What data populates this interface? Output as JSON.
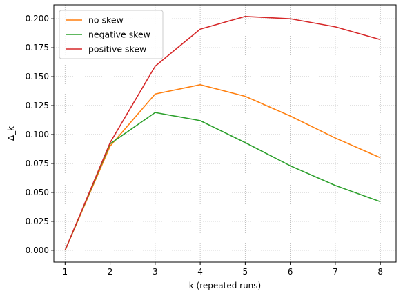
{
  "chart_data": {
    "type": "line",
    "x": [
      1,
      2,
      3,
      4,
      5,
      6,
      7,
      8
    ],
    "xlabel": "k (repeated runs)",
    "ylabel": "Δ_k",
    "xlim": [
      0.75,
      8.35
    ],
    "ylim": [
      -0.0102,
      0.212
    ],
    "xticks": [
      "1",
      "2",
      "3",
      "4",
      "5",
      "6",
      "7",
      "8"
    ],
    "yticks": [
      "0.000",
      "0.025",
      "0.050",
      "0.075",
      "0.100",
      "0.125",
      "0.150",
      "0.175",
      "0.200"
    ],
    "grid": true,
    "grid_style": "dotted",
    "legend_position": "top-left",
    "series": [
      {
        "name": "no skew",
        "color": "#ff7f0e",
        "values": [
          0.0,
          0.09,
          0.135,
          0.143,
          0.133,
          0.116,
          0.097,
          0.08
        ]
      },
      {
        "name": "negative skew",
        "color": "#2ca02c",
        "values": [
          0.0,
          0.092,
          0.119,
          0.112,
          0.093,
          0.073,
          0.056,
          0.042
        ]
      },
      {
        "name": "positive skew",
        "color": "#d62728",
        "values": [
          0.0,
          0.093,
          0.159,
          0.191,
          0.202,
          0.2,
          0.193,
          0.182
        ]
      }
    ]
  }
}
